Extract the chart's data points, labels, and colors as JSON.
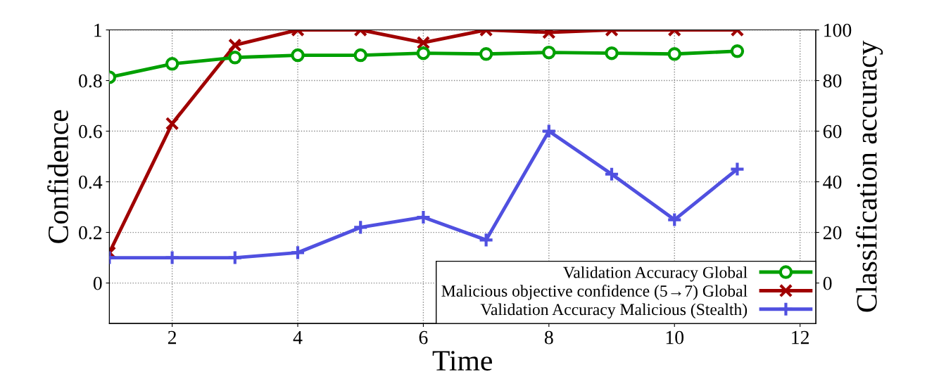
{
  "chart_data": {
    "type": "line",
    "xlabel": "Time",
    "ylabel": "Confidence",
    "y2label": "Classification accuracy",
    "x": [
      1,
      2,
      3,
      4,
      5,
      6,
      7,
      8,
      9,
      10,
      11
    ],
    "xlim": [
      1,
      12.25
    ],
    "xticks": [
      2,
      4,
      6,
      8,
      10,
      12
    ],
    "ylim": [
      -0.16,
      1
    ],
    "yticks": [
      0,
      0.2,
      0.4,
      0.6,
      0.8,
      1
    ],
    "y2lim": [
      -16,
      100
    ],
    "y2ticks": [
      0,
      20,
      40,
      60,
      80,
      100
    ],
    "grid": true,
    "legend": "bottom right",
    "line_style": "solid",
    "series": [
      {
        "name": "Validation Accuracy Global",
        "color": "#00a000",
        "marker": "circle",
        "axis": "y2",
        "values": [
          81.3,
          86.6,
          89.1,
          90,
          90,
          90.8,
          90.5,
          91.1,
          90.8,
          90.5,
          91.6
        ]
      },
      {
        "name": "Malicious objective confidence (5→7) Global",
        "color": "#a00000",
        "marker": "cross",
        "axis": "y",
        "values": [
          0.12,
          0.63,
          0.94,
          1,
          1,
          0.95,
          1,
          0.99,
          1,
          1,
          1
        ]
      },
      {
        "name": "Validation Accuracy Malicious (Stealth)",
        "color": "#5050e0",
        "marker": "plus",
        "axis": "y2",
        "values": [
          10,
          10,
          10,
          12,
          22,
          26,
          17,
          60,
          43,
          25,
          45
        ]
      }
    ]
  }
}
